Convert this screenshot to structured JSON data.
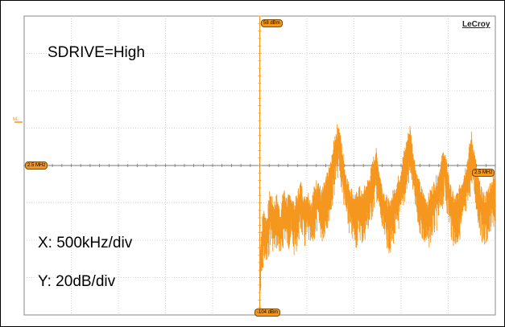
{
  "chart_data": {
    "type": "line",
    "title": "SDRIVE=High",
    "x_scale_label": "X: 500kHz/div",
    "y_scale_label": "Y: 20dB/div",
    "brand": "LeCroy",
    "top_level_tag": "58 dBm",
    "bottom_level_tag": "-104 dBm",
    "left_freq_tag": "2.5 MHz",
    "right_freq_tag": "2.5 MHz",
    "channel_marker": "M₁",
    "grid": true,
    "divisions": {
      "x": 10,
      "y": 8
    },
    "trace_color": "#f5961e",
    "y_unit": "dBm",
    "ylim": [
      -104,
      58
    ],
    "x_start_div": 5,
    "series": [
      {
        "values": [
          -78,
          -55,
          -60,
          -45,
          -52,
          -48,
          -57,
          -44,
          -50,
          -46,
          -53,
          -47,
          -40,
          -49,
          -45,
          -51,
          -43,
          -38,
          -46,
          -41,
          -35,
          -28,
          -15,
          -8,
          -20,
          -33,
          -41,
          -45,
          -49,
          -43,
          -47,
          -42,
          -38,
          -30,
          -22,
          -34,
          -44,
          -48,
          -52,
          -46,
          -41,
          -36,
          -26,
          -18,
          -10,
          -24,
          -36,
          -42,
          -47,
          -50,
          -45,
          -41,
          -37,
          -30,
          -22,
          -33,
          -44,
          -49,
          -46,
          -40,
          -34,
          -26,
          -14,
          -26,
          -38,
          -45,
          -48,
          -43,
          -39,
          -35
        ]
      }
    ]
  }
}
